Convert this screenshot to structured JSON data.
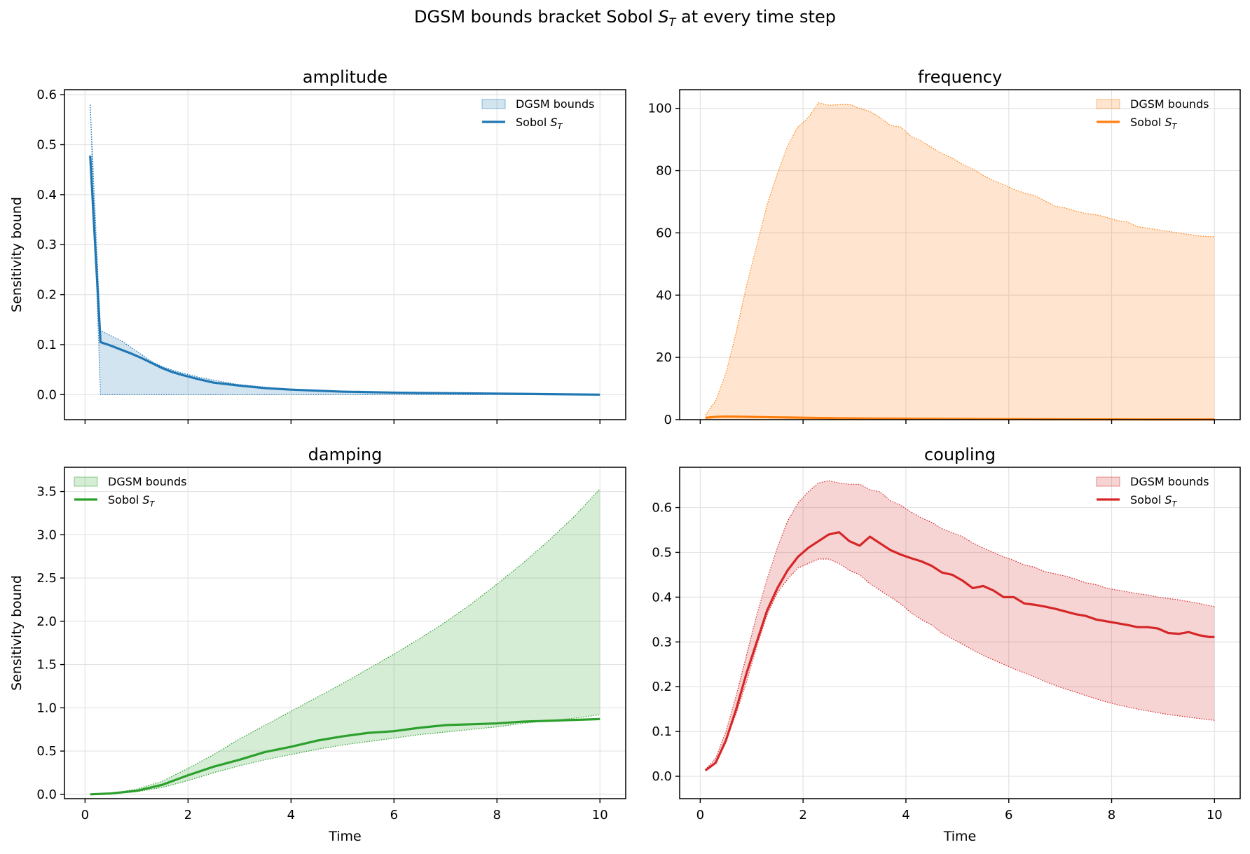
{
  "figure": {
    "suptitle_prefix": "DGSM bounds bracket Sobol ",
    "suptitle_S": "S",
    "suptitle_sub": "T",
    "suptitle_suffix": " at every time step"
  },
  "chart_data": [
    {
      "type": "area",
      "title": "amplitude",
      "color": "#1f77b4",
      "xlabel": "",
      "ylabel": "Sensitivity bound",
      "xlim": [
        -0.4,
        10.5
      ],
      "ylim": [
        -0.05,
        0.61
      ],
      "xticks": [
        0,
        2,
        4,
        6,
        8,
        10
      ],
      "yticks": [
        0.0,
        0.1,
        0.2,
        0.3,
        0.4,
        0.5,
        0.6
      ],
      "ytick_labels": [
        "0.0",
        "0.1",
        "0.2",
        "0.3",
        "0.4",
        "0.5",
        "0.6"
      ],
      "show_xtick_labels": false,
      "grid": true,
      "legend_loc": "top-right",
      "legend": {
        "bounds_label": "DGSM bounds",
        "sobol_label_prefix": "Sobol ",
        "sobol_S": "S",
        "sobol_sub": "T"
      },
      "x": [
        0.1,
        0.3,
        0.5,
        0.7,
        0.9,
        1.1,
        1.3,
        1.5,
        1.7,
        1.9,
        2.2,
        2.5,
        3.0,
        3.5,
        4.0,
        5.0,
        6.0,
        7.0,
        8.0,
        9.0,
        10.0
      ],
      "upper": [
        0.58,
        0.128,
        0.118,
        0.108,
        0.094,
        0.08,
        0.066,
        0.056,
        0.049,
        0.043,
        0.035,
        0.029,
        0.02,
        0.015,
        0.011,
        0.006,
        0.004,
        0.003,
        0.002,
        0.001,
        0.001
      ],
      "lower": [
        0.58,
        0.0,
        0.0,
        0.0,
        0.0,
        0.0,
        0.0,
        0.0,
        0.0,
        0.0,
        0.0,
        0.0,
        0.0,
        0.0,
        0.0,
        0.0,
        0.0,
        0.0,
        0.0,
        0.0,
        0.0
      ],
      "sobol": [
        0.478,
        0.105,
        0.098,
        0.09,
        0.082,
        0.073,
        0.063,
        0.053,
        0.045,
        0.039,
        0.031,
        0.024,
        0.018,
        0.013,
        0.01,
        0.006,
        0.004,
        0.003,
        0.002,
        0.001,
        0.0
      ]
    },
    {
      "type": "area",
      "title": "frequency",
      "color": "#ff7f0e",
      "xlabel": "",
      "ylabel": "",
      "xlim": [
        -0.4,
        10.5
      ],
      "ylim": [
        0,
        106
      ],
      "xticks": [
        0,
        2,
        4,
        6,
        8,
        10
      ],
      "yticks": [
        0,
        20,
        40,
        60,
        80,
        100
      ],
      "ytick_labels": [
        "0",
        "20",
        "40",
        "60",
        "80",
        "100"
      ],
      "show_xtick_labels": false,
      "grid": true,
      "legend_loc": "top-right",
      "legend": {
        "bounds_label": "DGSM bounds",
        "sobol_label_prefix": "Sobol ",
        "sobol_S": "S",
        "sobol_sub": "T"
      },
      "x": [
        0.1,
        0.3,
        0.5,
        0.7,
        0.9,
        1.1,
        1.3,
        1.5,
        1.7,
        1.9,
        2.1,
        2.3,
        2.5,
        2.7,
        2.9,
        3.1,
        3.3,
        3.5,
        3.7,
        3.9,
        4.1,
        4.3,
        4.5,
        4.7,
        4.9,
        5.1,
        5.3,
        5.5,
        5.7,
        5.9,
        6.1,
        6.3,
        6.5,
        6.7,
        6.9,
        7.1,
        7.3,
        7.5,
        7.7,
        7.9,
        8.1,
        8.3,
        8.5,
        8.7,
        8.9,
        9.1,
        9.3,
        9.5,
        9.7,
        9.9,
        10.0
      ],
      "upper": [
        1.5,
        6.0,
        15.0,
        28.0,
        43.0,
        56.0,
        69.0,
        79.0,
        88.0,
        94.0,
        97.0,
        101.8,
        101.0,
        101.2,
        101.3,
        100.0,
        99.0,
        97.0,
        94.5,
        94.0,
        91.0,
        89.5,
        87.5,
        85.5,
        84.0,
        82.0,
        80.5,
        78.5,
        76.8,
        75.5,
        74.0,
        72.8,
        72.0,
        70.3,
        68.6,
        68.0,
        67.0,
        66.2,
        65.8,
        65.0,
        64.0,
        63.5,
        62.0,
        61.5,
        61.0,
        60.5,
        60.0,
        59.5,
        59.0,
        58.8,
        58.8
      ],
      "lower": [
        0.0,
        0.0,
        0.0,
        0.0,
        0.0,
        0.0,
        0.0,
        0.0,
        0.0,
        0.0,
        0.0,
        0.0,
        0.0,
        0.0,
        0.0,
        0.0,
        0.0,
        0.0,
        0.0,
        0.0,
        0.0,
        0.0,
        0.0,
        0.0,
        0.0,
        0.0,
        0.0,
        0.0,
        0.0,
        0.0,
        0.0,
        0.0,
        0.0,
        0.0,
        0.0,
        0.0,
        0.0,
        0.0,
        0.0,
        0.0,
        0.0,
        0.0,
        0.0,
        0.0,
        0.0,
        0.0,
        0.0,
        0.0,
        0.0,
        0.0,
        0.0
      ],
      "sobol": [
        0.6,
        0.9,
        1.0,
        0.95,
        0.9,
        0.85,
        0.8,
        0.75,
        0.7,
        0.65,
        0.6,
        0.55,
        0.5,
        0.45,
        0.42,
        0.4,
        0.37,
        0.35,
        0.33,
        0.31,
        0.29,
        0.27,
        0.25,
        0.24,
        0.22,
        0.21,
        0.2,
        0.18,
        0.17,
        0.16,
        0.15,
        0.14,
        0.13,
        0.12,
        0.11,
        0.1,
        0.1,
        0.09,
        0.09,
        0.08,
        0.08,
        0.07,
        0.07,
        0.06,
        0.06,
        0.06,
        0.05,
        0.05,
        0.05,
        0.05,
        0.05
      ]
    },
    {
      "type": "area",
      "title": "damping",
      "color": "#2ca02c",
      "xlabel": "Time",
      "ylabel": "Sensitivity bound",
      "xlim": [
        -0.4,
        10.5
      ],
      "ylim": [
        -0.05,
        3.78
      ],
      "xticks": [
        0,
        2,
        4,
        6,
        8,
        10
      ],
      "yticks": [
        0.0,
        0.5,
        1.0,
        1.5,
        2.0,
        2.5,
        3.0,
        3.5
      ],
      "ytick_labels": [
        "0.0",
        "0.5",
        "1.0",
        "1.5",
        "2.0",
        "2.5",
        "3.0",
        "3.5"
      ],
      "show_xtick_labels": true,
      "xtick_labels": [
        "0",
        "2",
        "4",
        "6",
        "8",
        "10"
      ],
      "grid": true,
      "legend_loc": "top-left",
      "legend": {
        "bounds_label": "DGSM bounds",
        "sobol_label_prefix": "Sobol ",
        "sobol_S": "S",
        "sobol_sub": "T"
      },
      "x": [
        0.1,
        0.5,
        1.0,
        1.5,
        2.0,
        2.5,
        3.0,
        3.5,
        4.0,
        4.5,
        5.0,
        5.5,
        6.0,
        6.5,
        7.0,
        7.5,
        8.0,
        8.5,
        9.0,
        9.5,
        10.0
      ],
      "upper": [
        0.0,
        0.01,
        0.06,
        0.15,
        0.3,
        0.46,
        0.64,
        0.8,
        0.96,
        1.12,
        1.28,
        1.45,
        1.62,
        1.8,
        1.99,
        2.2,
        2.43,
        2.67,
        2.93,
        3.21,
        3.53
      ],
      "lower": [
        0.0,
        0.01,
        0.03,
        0.08,
        0.16,
        0.25,
        0.33,
        0.4,
        0.46,
        0.52,
        0.57,
        0.61,
        0.65,
        0.69,
        0.72,
        0.75,
        0.78,
        0.82,
        0.85,
        0.88,
        0.92
      ],
      "sobol": [
        0.0,
        0.01,
        0.04,
        0.11,
        0.22,
        0.32,
        0.4,
        0.49,
        0.55,
        0.62,
        0.67,
        0.71,
        0.73,
        0.77,
        0.8,
        0.81,
        0.82,
        0.84,
        0.85,
        0.86,
        0.87
      ]
    },
    {
      "type": "area",
      "title": "coupling",
      "color": "#d62728",
      "xlabel": "Time",
      "ylabel": "",
      "xlim": [
        -0.4,
        10.5
      ],
      "ylim": [
        -0.05,
        0.69
      ],
      "xticks": [
        0,
        2,
        4,
        6,
        8,
        10
      ],
      "yticks": [
        0.0,
        0.1,
        0.2,
        0.3,
        0.4,
        0.5,
        0.6
      ],
      "ytick_labels": [
        "0.0",
        "0.1",
        "0.2",
        "0.3",
        "0.4",
        "0.5",
        "0.6"
      ],
      "show_xtick_labels": true,
      "xtick_labels": [
        "0",
        "2",
        "4",
        "6",
        "8",
        "10"
      ],
      "grid": true,
      "legend_loc": "top-right",
      "legend": {
        "bounds_label": "DGSM bounds",
        "sobol_label_prefix": "Sobol ",
        "sobol_S": "S",
        "sobol_sub": "T"
      },
      "x": [
        0.1,
        0.3,
        0.5,
        0.7,
        0.9,
        1.1,
        1.3,
        1.5,
        1.7,
        1.9,
        2.1,
        2.3,
        2.5,
        2.7,
        2.9,
        3.1,
        3.3,
        3.5,
        3.7,
        3.9,
        4.1,
        4.3,
        4.5,
        4.7,
        4.9,
        5.1,
        5.3,
        5.5,
        5.7,
        5.9,
        6.1,
        6.3,
        6.5,
        6.7,
        6.9,
        7.1,
        7.3,
        7.5,
        7.7,
        7.9,
        8.1,
        8.3,
        8.5,
        8.7,
        8.9,
        9.1,
        9.3,
        9.5,
        9.7,
        9.9,
        10.0
      ],
      "upper": [
        0.015,
        0.04,
        0.1,
        0.18,
        0.27,
        0.36,
        0.44,
        0.51,
        0.57,
        0.61,
        0.635,
        0.655,
        0.66,
        0.655,
        0.652,
        0.652,
        0.64,
        0.635,
        0.615,
        0.605,
        0.59,
        0.577,
        0.567,
        0.553,
        0.544,
        0.535,
        0.521,
        0.51,
        0.5,
        0.49,
        0.482,
        0.472,
        0.467,
        0.457,
        0.452,
        0.447,
        0.44,
        0.432,
        0.428,
        0.42,
        0.416,
        0.412,
        0.408,
        0.405,
        0.4,
        0.397,
        0.394,
        0.39,
        0.386,
        0.381,
        0.379
      ],
      "lower": [
        0.015,
        0.03,
        0.08,
        0.14,
        0.21,
        0.29,
        0.36,
        0.41,
        0.44,
        0.465,
        0.475,
        0.485,
        0.485,
        0.475,
        0.46,
        0.45,
        0.43,
        0.415,
        0.4,
        0.385,
        0.365,
        0.35,
        0.338,
        0.32,
        0.307,
        0.295,
        0.282,
        0.27,
        0.26,
        0.25,
        0.24,
        0.231,
        0.222,
        0.212,
        0.203,
        0.195,
        0.188,
        0.18,
        0.173,
        0.166,
        0.16,
        0.155,
        0.15,
        0.146,
        0.142,
        0.138,
        0.135,
        0.132,
        0.129,
        0.126,
        0.125
      ],
      "sobol": [
        0.013,
        0.03,
        0.08,
        0.15,
        0.23,
        0.3,
        0.37,
        0.42,
        0.46,
        0.49,
        0.51,
        0.525,
        0.54,
        0.545,
        0.525,
        0.515,
        0.535,
        0.52,
        0.505,
        0.495,
        0.487,
        0.48,
        0.47,
        0.455,
        0.45,
        0.437,
        0.42,
        0.425,
        0.415,
        0.4,
        0.4,
        0.386,
        0.383,
        0.379,
        0.374,
        0.368,
        0.362,
        0.358,
        0.35,
        0.346,
        0.342,
        0.338,
        0.333,
        0.333,
        0.33,
        0.32,
        0.318,
        0.322,
        0.315,
        0.311,
        0.311
      ]
    }
  ]
}
